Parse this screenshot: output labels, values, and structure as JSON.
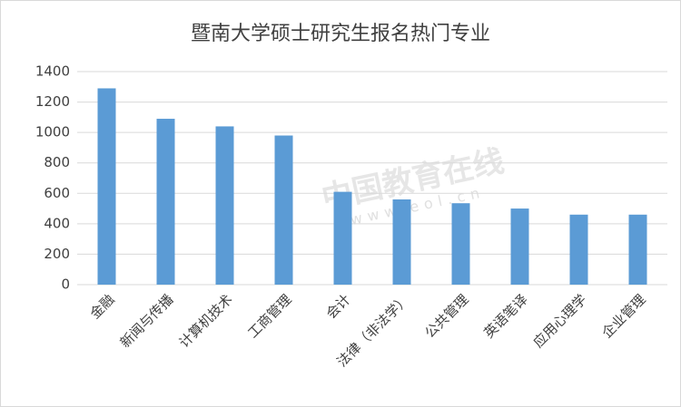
{
  "chart_data": {
    "type": "bar",
    "title": "暨南大学硕士研究生报名热门专业",
    "categories": [
      "金融",
      "新闻与传播",
      "计算机技术",
      "工商管理",
      "会计",
      "法律（非法学）",
      "公共管理",
      "英语笔译",
      "应用心理学",
      "企业管理"
    ],
    "values": [
      1290,
      1090,
      1040,
      980,
      610,
      560,
      535,
      500,
      460,
      460
    ],
    "color": "#5b9bd5",
    "ylim": [
      0,
      1400
    ],
    "yticks": [
      0,
      200,
      400,
      600,
      800,
      1000,
      1200,
      1400
    ],
    "grid": true,
    "watermark": [
      "中国教育在线",
      "www.eol.cn"
    ]
  }
}
